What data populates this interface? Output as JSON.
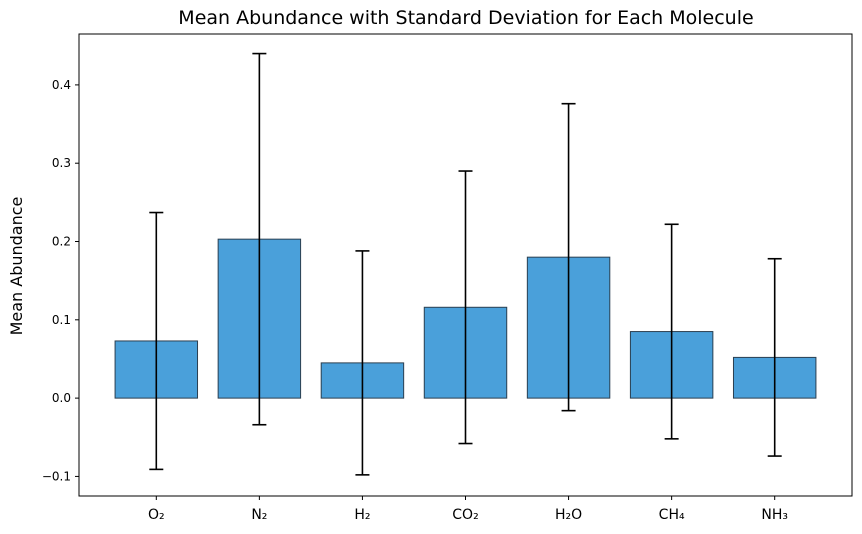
{
  "chart_data": {
    "type": "bar",
    "title": "Mean Abundance with Standard Deviation for Each Molecule",
    "xlabel": "",
    "ylabel": "Mean Abundance",
    "categories": [
      "O₂",
      "N₂",
      "H₂",
      "CO₂",
      "H₂O",
      "CH₄",
      "NH₃"
    ],
    "values": [
      0.073,
      0.203,
      0.045,
      0.116,
      0.18,
      0.085,
      0.052
    ],
    "error": [
      0.164,
      0.237,
      0.143,
      0.174,
      0.196,
      0.137,
      0.126
    ],
    "ylim": [
      -0.125,
      0.465
    ],
    "yticks": [
      -0.1,
      0.0,
      0.1,
      0.2,
      0.3,
      0.4
    ],
    "ytick_labels": [
      "−0.1",
      "0.0",
      "0.1",
      "0.2",
      "0.3",
      "0.4"
    ],
    "grid": false,
    "legend": "none",
    "colors": {
      "bar_fill": "#4aa0da",
      "bar_edge": "#2b3f50",
      "error_bar": "#000000",
      "axes": "#000000"
    }
  }
}
